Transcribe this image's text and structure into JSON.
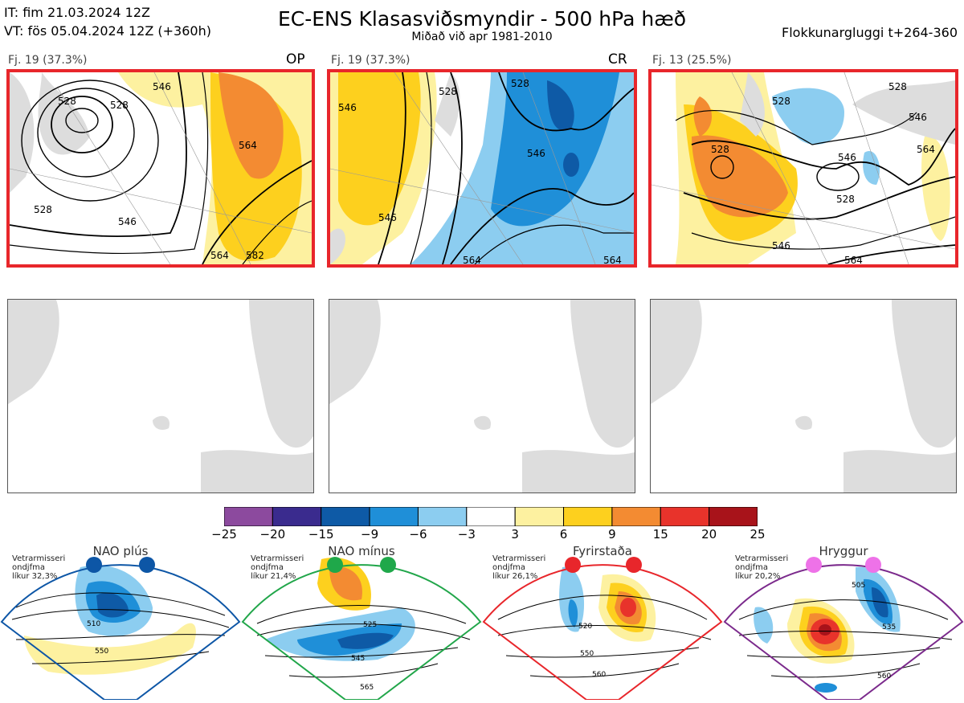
{
  "header": {
    "it_line": "IT: fim 21.03.2024 12Z",
    "vt_line": "VT: fös 05.04.2024 12Z  (+360h)",
    "title": "EC-ENS Klasasviðsmyndir - 500 hPa hæð",
    "subtitle": "Miðað við apr 1981-2010",
    "window": "Flokkunargluggi t+264-360"
  },
  "panels": [
    {
      "label": "Fj. 19 (37.3%)",
      "tag": "OP",
      "contours": [
        "528",
        "528",
        "528",
        "546",
        "546",
        "564",
        "564",
        "582"
      ]
    },
    {
      "label": "Fj. 19 (37.3%)",
      "tag": "CR",
      "contours": [
        "528",
        "528",
        "546",
        "546",
        "546",
        "564",
        "564"
      ]
    },
    {
      "label": "Fj. 13 (25.5%)",
      "tag": "",
      "contours": [
        "528",
        "528",
        "528",
        "528",
        "546",
        "546",
        "546",
        "564",
        "564"
      ]
    }
  ],
  "colorbar": {
    "ticks": [
      "−25",
      "−20",
      "−15",
      "−9",
      "−6",
      "−3",
      "3",
      "6",
      "9",
      "15",
      "20",
      "25"
    ],
    "colors": [
      "#8c4a9e",
      "#3a2b8e",
      "#0e5aa6",
      "#1f8fd8",
      "#8ccdf0",
      "#ffffff",
      "#fdf1a0",
      "#fdd01e",
      "#f38b32",
      "#e8332b",
      "#a8131a"
    ]
  },
  "regimes": [
    {
      "name": "NAO plús",
      "note": [
        "Vetrarmisseri",
        "ondjfma",
        "líkur 32,3%"
      ],
      "dot_color": "#0d56a6",
      "frame_color": "#0d56a6",
      "contours": [
        "510",
        "550"
      ]
    },
    {
      "name": "NAO mínus",
      "note": [
        "Vetrarmisseri",
        "ondjfma",
        "líkur 21,4%"
      ],
      "dot_color": "#1fa84a",
      "frame_color": "#21a64a",
      "contours": [
        "525",
        "545",
        "565"
      ]
    },
    {
      "name": "Fyrirstaða",
      "note": [
        "Vetrarmisseri",
        "ondjfma",
        "líkur 26,1%"
      ],
      "dot_color": "#e8262b",
      "frame_color": "#e8262b",
      "contours": [
        "520",
        "550",
        "560"
      ]
    },
    {
      "name": "Hryggur",
      "note": [
        "Vetrarmisseri",
        "ondjfma",
        "líkur 20,2%"
      ],
      "dot_color": "#ee72e8",
      "frame_color": "#7b2a8c",
      "contours": [
        "505",
        "535",
        "560"
      ]
    }
  ]
}
